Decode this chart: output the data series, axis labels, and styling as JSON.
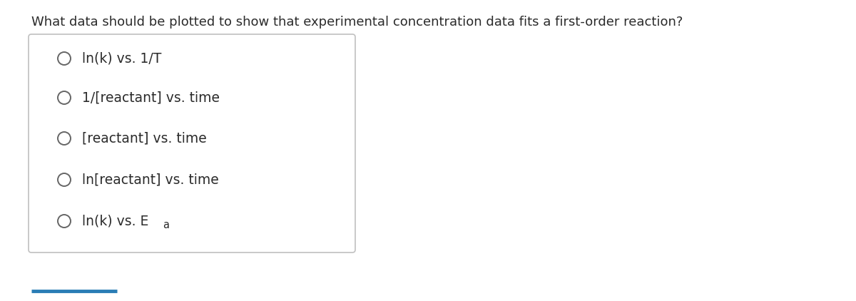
{
  "question": "What data should be plotted to show that experimental concentration data fits a first-order reaction?",
  "options_main": [
    "ln(k) vs. 1/T",
    "1/[reactant] vs. time",
    "[reactant] vs. time",
    "ln[reactant] vs. time",
    "ln(k) vs. E"
  ],
  "last_subscript": "a",
  "bg_color": "#ffffff",
  "text_color": "#2b2b2b",
  "question_fontsize": 13.0,
  "option_fontsize": 13.5,
  "subscript_fontsize": 10.5,
  "circle_linewidth": 1.4,
  "circle_edgecolor": "#666666",
  "box_edgecolor": "#c0c0c0",
  "box_facecolor": "#ffffff",
  "underline_color": "#2a7db5",
  "underline_linewidth": 3.5
}
